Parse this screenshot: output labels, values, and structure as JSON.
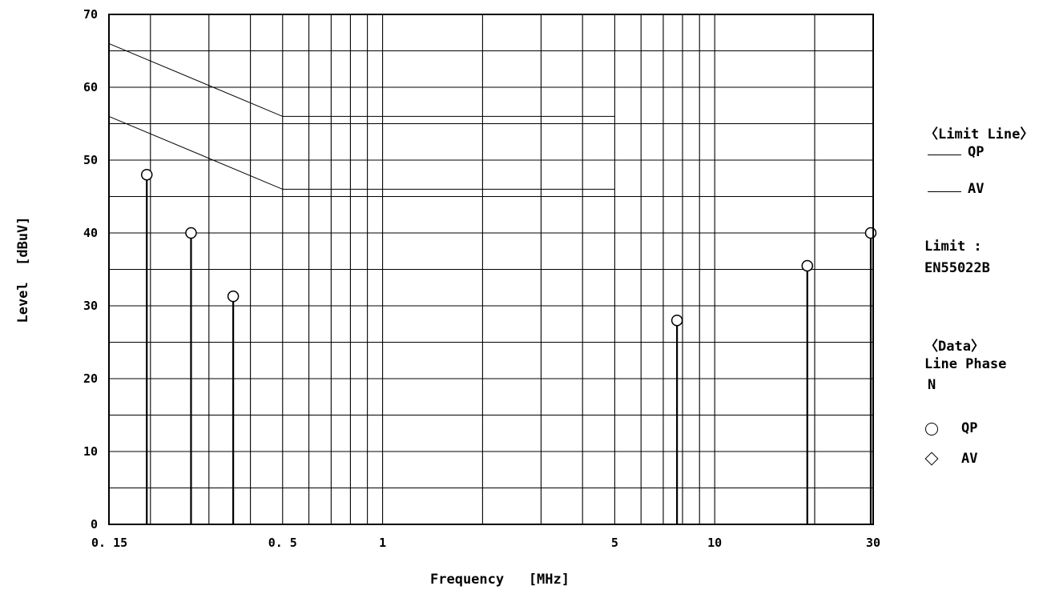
{
  "chart_data": {
    "type": "scatter",
    "title": "",
    "xlabel": "Frequency   [MHz]",
    "ylabel": "Level  [dBuV]",
    "xscale": "log",
    "xlim": [
      0.15,
      30
    ],
    "ylim": [
      0,
      70
    ],
    "grid": true,
    "x_tick_labels": [
      {
        "value": 0.15,
        "label": "0. 15"
      },
      {
        "value": 0.5,
        "label": "0. 5"
      },
      {
        "value": 1,
        "label": "1"
      },
      {
        "value": 5,
        "label": "5"
      },
      {
        "value": 10,
        "label": "10"
      },
      {
        "value": 30,
        "label": "30"
      }
    ],
    "y_ticks": [
      0,
      10,
      20,
      30,
      40,
      50,
      60,
      70
    ],
    "limit_lines": [
      {
        "name": "QP",
        "points": [
          [
            0.15,
            66
          ],
          [
            0.5,
            56
          ],
          [
            5,
            56
          ]
        ]
      },
      {
        "name": "AV",
        "points": [
          [
            0.15,
            56
          ],
          [
            0.5,
            46
          ],
          [
            5,
            46
          ]
        ]
      }
    ],
    "series": [
      {
        "name": "QP",
        "marker": "circle",
        "points": [
          [
            0.195,
            48
          ],
          [
            0.265,
            40
          ],
          [
            0.355,
            31.3
          ],
          [
            7.7,
            28
          ],
          [
            19,
            35.5
          ],
          [
            29.5,
            40
          ]
        ]
      },
      {
        "name": "AV",
        "marker": "diamond",
        "points": []
      }
    ],
    "legend_placement": "right"
  },
  "legend": {
    "limit_header": "〈Limit Line〉",
    "limit_qp": "QP",
    "limit_av": "AV",
    "limit_label": "Limit :",
    "limit_standard": "EN55022B",
    "data_header": "〈Data〉",
    "line_phase_label": "Line Phase",
    "phase_value": "N",
    "data_qp": "QP",
    "data_av": "AV"
  }
}
